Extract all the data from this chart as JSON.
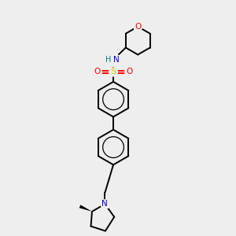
{
  "bg_color": "#eeeeee",
  "atom_colors": {
    "C": "#000000",
    "N": "#0000cc",
    "O": "#ff0000",
    "S": "#cccc00",
    "H": "#008080"
  },
  "bond_width": 1.4,
  "figsize": [
    3.0,
    3.0
  ],
  "dpi": 100,
  "xlim": [
    0,
    10
  ],
  "ylim": [
    0,
    10
  ]
}
